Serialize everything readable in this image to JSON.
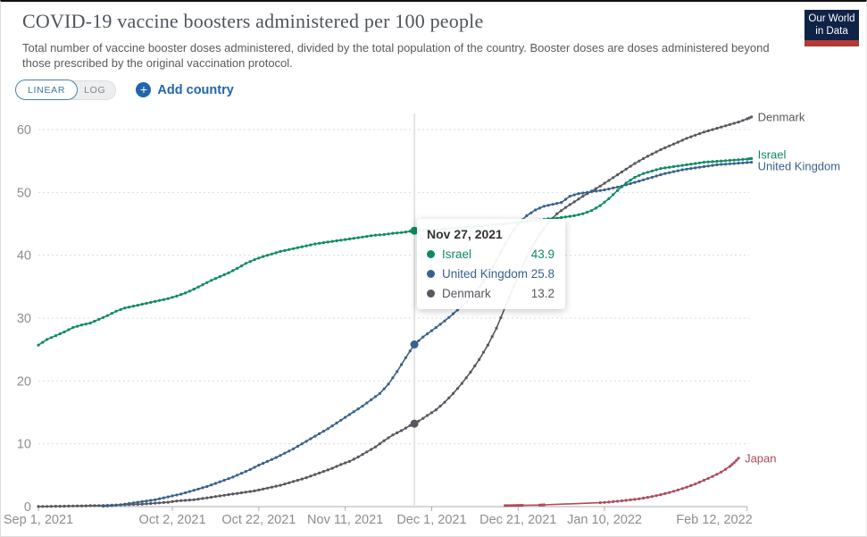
{
  "header": {
    "title": "COVID-19 vaccine boosters administered per 100 people",
    "subtitle_line1": "Total number of vaccine booster doses administered, divided by the total population of the country. Booster doses are doses administered beyond",
    "subtitle_line2": "those prescribed by the original vaccination protocol.",
    "logo": {
      "line1": "Our World",
      "line2": "in Data"
    }
  },
  "controls": {
    "linear_label": "LINEAR",
    "log_label": "LOG",
    "selected_scale": "LINEAR",
    "add_country_label": "Add country",
    "plus_icon": "+"
  },
  "tooltip": {
    "date": "Nov 27, 2021",
    "rows": [
      {
        "series": "Israel",
        "value": "43.9"
      },
      {
        "series": "United Kingdom",
        "value": "25.8"
      },
      {
        "series": "Denmark",
        "value": "13.2"
      }
    ]
  },
  "theme": {
    "link_blue": "#2166ac",
    "logo_navy": "#0f2346",
    "logo_red": "#b13a34",
    "axis_text": "#8d8d8d",
    "gridline": "#dcdcdc",
    "axis_line": "#adadad",
    "crosshair": "#e3e3e3"
  },
  "chart_data": {
    "type": "line",
    "title": "COVID-19 vaccine boosters administered per 100 people",
    "ylabel": "",
    "x_unit": "days since Sep 1, 2021",
    "ylim": [
      0,
      62
    ],
    "y_ticks": [
      0,
      10,
      20,
      30,
      40,
      50,
      60
    ],
    "grid": true,
    "legend_position": "end-of-line-labels",
    "x_ticks": [
      {
        "day": 0,
        "label": "Sep 1, 2021"
      },
      {
        "day": 31,
        "label": "Oct 2, 2021"
      },
      {
        "day": 51,
        "label": "Oct 22, 2021"
      },
      {
        "day": 71,
        "label": "Nov 11, 2021"
      },
      {
        "day": 91,
        "label": "Dec 1, 2021"
      },
      {
        "day": 111,
        "label": "Dec 21, 2021"
      },
      {
        "day": 131,
        "label": "Jan 10, 2022"
      },
      {
        "day": 164,
        "label": "Feb 12, 2022"
      }
    ],
    "crosshair": {
      "day": 87,
      "date": "Nov 27, 2021",
      "points": [
        {
          "series": "Israel",
          "value": 43.9
        },
        {
          "series": "United Kingdom",
          "value": 25.8
        },
        {
          "series": "Denmark",
          "value": 13.2
        }
      ]
    },
    "series": [
      {
        "id": "denmark",
        "name": "Denmark",
        "color": "#57575f",
        "points": [
          [
            0,
            0.02
          ],
          [
            2,
            0.03
          ],
          [
            4,
            0.05
          ],
          [
            6,
            0.07
          ],
          [
            8,
            0.1
          ],
          [
            10,
            0.12
          ],
          [
            12,
            0.15
          ],
          [
            14,
            0.17
          ],
          [
            16,
            0.2
          ],
          [
            18,
            0.25
          ],
          [
            20,
            0.3
          ],
          [
            22,
            0.35
          ],
          [
            24,
            0.4
          ],
          [
            26,
            0.5
          ],
          [
            28,
            0.6
          ],
          [
            30,
            0.7
          ],
          [
            32,
            0.9
          ],
          [
            34,
            1.0
          ],
          [
            36,
            1.1
          ],
          [
            38,
            1.3
          ],
          [
            40,
            1.5
          ],
          [
            42,
            1.7
          ],
          [
            44,
            1.9
          ],
          [
            46,
            2.1
          ],
          [
            48,
            2.3
          ],
          [
            50,
            2.5
          ],
          [
            52,
            2.8
          ],
          [
            54,
            3.1
          ],
          [
            56,
            3.4
          ],
          [
            58,
            3.8
          ],
          [
            60,
            4.2
          ],
          [
            62,
            4.6
          ],
          [
            64,
            5.1
          ],
          [
            66,
            5.6
          ],
          [
            68,
            6.1
          ],
          [
            70,
            6.7
          ],
          [
            72,
            7.2
          ],
          [
            74,
            7.9
          ],
          [
            76,
            8.7
          ],
          [
            78,
            9.5
          ],
          [
            80,
            10.5
          ],
          [
            82,
            11.4
          ],
          [
            84,
            12.1
          ],
          [
            86,
            12.9
          ],
          [
            88,
            13.6
          ],
          [
            90,
            14.5
          ],
          [
            92,
            15.4
          ],
          [
            94,
            16.6
          ],
          [
            96,
            18.0
          ],
          [
            98,
            19.6
          ],
          [
            100,
            21.4
          ],
          [
            102,
            23.4
          ],
          [
            104,
            25.7
          ],
          [
            106,
            28.4
          ],
          [
            108,
            31.7
          ],
          [
            110,
            35.0
          ],
          [
            112,
            38.2
          ],
          [
            114,
            41.0
          ],
          [
            116,
            43.3
          ],
          [
            118,
            45.2
          ],
          [
            120,
            46.6
          ],
          [
            122,
            47.6
          ],
          [
            124,
            48.5
          ],
          [
            126,
            49.4
          ],
          [
            128,
            50.2
          ],
          [
            130,
            51.0
          ],
          [
            132,
            51.9
          ],
          [
            134,
            52.8
          ],
          [
            136,
            53.7
          ],
          [
            138,
            54.6
          ],
          [
            140,
            55.4
          ],
          [
            142,
            56.1
          ],
          [
            144,
            56.8
          ],
          [
            146,
            57.4
          ],
          [
            148,
            58.0
          ],
          [
            150,
            58.6
          ],
          [
            152,
            59.1
          ],
          [
            154,
            59.6
          ],
          [
            156,
            60.0
          ],
          [
            158,
            60.4
          ],
          [
            160,
            60.8
          ],
          [
            162,
            61.2
          ],
          [
            164,
            61.7
          ],
          [
            165,
            62.0
          ]
        ]
      },
      {
        "id": "united-kingdom",
        "name": "United Kingdom",
        "color": "#3a618c",
        "points": [
          [
            15,
            0.05
          ],
          [
            17,
            0.15
          ],
          [
            19,
            0.3
          ],
          [
            21,
            0.5
          ],
          [
            23,
            0.7
          ],
          [
            25,
            0.9
          ],
          [
            27,
            1.1
          ],
          [
            29,
            1.4
          ],
          [
            31,
            1.7
          ],
          [
            33,
            2.0
          ],
          [
            35,
            2.4
          ],
          [
            37,
            2.8
          ],
          [
            39,
            3.2
          ],
          [
            41,
            3.7
          ],
          [
            43,
            4.2
          ],
          [
            45,
            4.7
          ],
          [
            47,
            5.3
          ],
          [
            49,
            5.9
          ],
          [
            51,
            6.6
          ],
          [
            53,
            7.2
          ],
          [
            55,
            7.8
          ],
          [
            57,
            8.5
          ],
          [
            59,
            9.2
          ],
          [
            61,
            10.0
          ],
          [
            63,
            10.8
          ],
          [
            65,
            11.6
          ],
          [
            67,
            12.4
          ],
          [
            69,
            13.3
          ],
          [
            71,
            14.2
          ],
          [
            73,
            15.1
          ],
          [
            75,
            16.0
          ],
          [
            77,
            17.0
          ],
          [
            79,
            18.0
          ],
          [
            81,
            19.5
          ],
          [
            83,
            21.5
          ],
          [
            85,
            23.7
          ],
          [
            87,
            25.8
          ],
          [
            89,
            27.0
          ],
          [
            91,
            28.0
          ],
          [
            93,
            29.0
          ],
          [
            95,
            30.1
          ],
          [
            97,
            31.3
          ],
          [
            99,
            32.5
          ],
          [
            101,
            34.0
          ],
          [
            103,
            35.8
          ],
          [
            105,
            38.0
          ],
          [
            107,
            40.5
          ],
          [
            109,
            43.0
          ],
          [
            111,
            45.0
          ],
          [
            113,
            46.3
          ],
          [
            115,
            47.2
          ],
          [
            117,
            47.8
          ],
          [
            119,
            48.1
          ],
          [
            121,
            48.4
          ],
          [
            123,
            49.4
          ],
          [
            125,
            49.8
          ],
          [
            127,
            50.0
          ],
          [
            129,
            50.2
          ],
          [
            131,
            50.4
          ],
          [
            133,
            50.7
          ],
          [
            135,
            51.0
          ],
          [
            137,
            51.4
          ],
          [
            139,
            51.8
          ],
          [
            141,
            52.2
          ],
          [
            143,
            52.6
          ],
          [
            145,
            53.0
          ],
          [
            147,
            53.3
          ],
          [
            149,
            53.6
          ],
          [
            151,
            53.8
          ],
          [
            153,
            54.0
          ],
          [
            155,
            54.2
          ],
          [
            157,
            54.4
          ],
          [
            159,
            54.5
          ],
          [
            161,
            54.6
          ],
          [
            163,
            54.7
          ],
          [
            165,
            54.8
          ]
        ]
      },
      {
        "id": "israel",
        "name": "Israel",
        "color": "#0e8a63",
        "points": [
          [
            0,
            25.7
          ],
          [
            2,
            26.6
          ],
          [
            4,
            27.2
          ],
          [
            6,
            27.8
          ],
          [
            8,
            28.5
          ],
          [
            10,
            28.9
          ],
          [
            12,
            29.2
          ],
          [
            14,
            29.8
          ],
          [
            16,
            30.4
          ],
          [
            18,
            31.1
          ],
          [
            20,
            31.6
          ],
          [
            22,
            31.9
          ],
          [
            24,
            32.2
          ],
          [
            26,
            32.5
          ],
          [
            28,
            32.8
          ],
          [
            30,
            33.1
          ],
          [
            32,
            33.5
          ],
          [
            34,
            34.0
          ],
          [
            36,
            34.6
          ],
          [
            38,
            35.3
          ],
          [
            40,
            36.0
          ],
          [
            42,
            36.6
          ],
          [
            44,
            37.2
          ],
          [
            46,
            37.9
          ],
          [
            48,
            38.7
          ],
          [
            50,
            39.3
          ],
          [
            52,
            39.8
          ],
          [
            54,
            40.2
          ],
          [
            56,
            40.6
          ],
          [
            58,
            40.9
          ],
          [
            60,
            41.2
          ],
          [
            62,
            41.5
          ],
          [
            64,
            41.8
          ],
          [
            66,
            42.0
          ],
          [
            68,
            42.2
          ],
          [
            70,
            42.4
          ],
          [
            72,
            42.6
          ],
          [
            74,
            42.8
          ],
          [
            76,
            43.0
          ],
          [
            78,
            43.2
          ],
          [
            80,
            43.3
          ],
          [
            82,
            43.5
          ],
          [
            84,
            43.6
          ],
          [
            86,
            43.8
          ],
          [
            88,
            43.9
          ],
          [
            90,
            44.0
          ],
          [
            92,
            44.1
          ],
          [
            94,
            44.2
          ],
          [
            96,
            44.3
          ],
          [
            98,
            44.4
          ],
          [
            100,
            44.5
          ],
          [
            102,
            44.6
          ],
          [
            104,
            44.7
          ],
          [
            106,
            44.9
          ],
          [
            108,
            45.0
          ],
          [
            110,
            45.2
          ],
          [
            112,
            45.3
          ],
          [
            114,
            45.5
          ],
          [
            116,
            45.6
          ],
          [
            118,
            45.8
          ],
          [
            120,
            45.9
          ],
          [
            122,
            46.1
          ],
          [
            124,
            46.3
          ],
          [
            126,
            46.6
          ],
          [
            128,
            47.1
          ],
          [
            130,
            47.9
          ],
          [
            132,
            49.0
          ],
          [
            134,
            50.3
          ],
          [
            136,
            51.5
          ],
          [
            138,
            52.4
          ],
          [
            140,
            53.0
          ],
          [
            142,
            53.4
          ],
          [
            144,
            53.8
          ],
          [
            146,
            54.0
          ],
          [
            148,
            54.2
          ],
          [
            150,
            54.4
          ],
          [
            152,
            54.6
          ],
          [
            154,
            54.8
          ],
          [
            156,
            54.9
          ],
          [
            158,
            55.0
          ],
          [
            160,
            55.1
          ],
          [
            162,
            55.2
          ],
          [
            164,
            55.3
          ],
          [
            165,
            55.4
          ]
        ]
      },
      {
        "id": "japan",
        "name": "Japan",
        "color": "#ae4a5c",
        "points": [
          [
            108,
            0.15
          ],
          [
            109,
            0.17
          ],
          [
            110,
            0.18
          ],
          [
            111,
            0.2
          ],
          [
            112,
            0.21
          ],
          [
            116,
            0.26
          ],
          [
            117,
            0.28
          ],
          [
            130,
            0.62
          ],
          [
            132,
            0.73
          ],
          [
            134,
            0.85
          ],
          [
            136,
            1.0
          ],
          [
            138,
            1.15
          ],
          [
            140,
            1.35
          ],
          [
            142,
            1.6
          ],
          [
            144,
            1.9
          ],
          [
            146,
            2.25
          ],
          [
            148,
            2.65
          ],
          [
            150,
            3.1
          ],
          [
            152,
            3.6
          ],
          [
            154,
            4.2
          ],
          [
            156,
            4.8
          ],
          [
            158,
            5.5
          ],
          [
            160,
            6.4
          ],
          [
            161,
            7.0
          ],
          [
            162,
            7.7
          ]
        ]
      }
    ]
  }
}
